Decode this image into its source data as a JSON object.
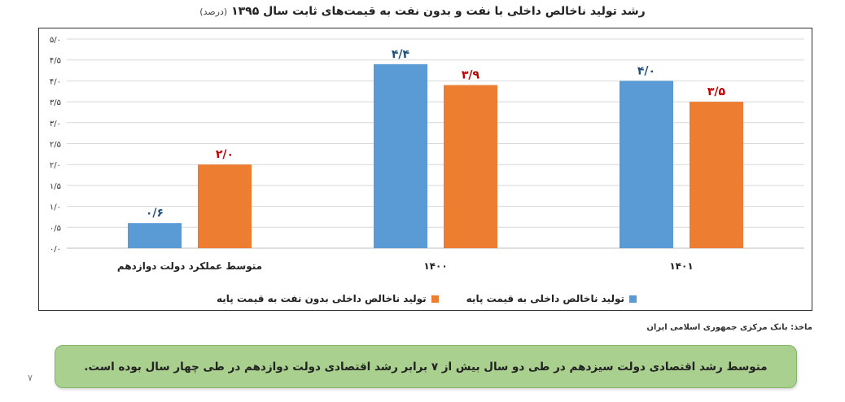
{
  "chart_data": {
    "type": "bar",
    "title": "رشد تولید ناخالص داخلی با نفت و بدون نفت به قیمت‌های ثابت سال ۱۳۹۵",
    "title_unit": "(درصد)",
    "categories": [
      "متوسط عملکرد دولت دوازدهم",
      "۱۴۰۰",
      "۱۴۰۱"
    ],
    "series": [
      {
        "name": "تولید ناخالص داخلی به قیمت پایه",
        "values": [
          0.6,
          4.4,
          4.0
        ],
        "value_labels": [
          "۰/۶",
          "۴/۴",
          "۴/۰"
        ],
        "color": "#5b9bd5",
        "label_color": "#1f4e79"
      },
      {
        "name": "تولید ناخالص داخلی بدون نفت به قیمت پایه",
        "values": [
          2.0,
          3.9,
          3.5
        ],
        "value_labels": [
          "۲/۰",
          "۳/۹",
          "۳/۵"
        ],
        "color": "#ed7d31",
        "label_color": "#c00000"
      }
    ],
    "ylim": [
      0,
      5
    ],
    "yticks": [
      0,
      0.5,
      1,
      1.5,
      2,
      2.5,
      3,
      3.5,
      4,
      4.5,
      5
    ],
    "ytick_labels": [
      "۰/۰",
      "۰/۵",
      "۱/۰",
      "۱/۵",
      "۲/۰",
      "۲/۵",
      "۳/۰",
      "۳/۵",
      "۴/۰",
      "۴/۵",
      "۵/۰"
    ],
    "grid": true,
    "legend_position": "bottom"
  },
  "source": "ماخذ: بانک مرکزی جمهوری اسلامی ایران",
  "callout": "متوسط رشد اقتصادی دولت سیزدهم در طی دو سال بیش از ۷ برابر رشد اقتصادی دولت دوازدهم در طی چهار سال بوده است.",
  "page_number": "۷"
}
